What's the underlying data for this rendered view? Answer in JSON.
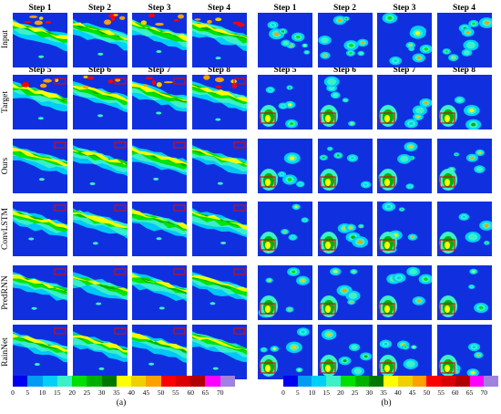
{
  "panels": [
    {
      "caption": "(a)",
      "input_steps": [
        "Step 1",
        "Step 2",
        "Step 3",
        "Step 4"
      ],
      "output_steps": [
        "Step 5",
        "Step 6",
        "Step 7",
        "Step 8"
      ],
      "rows": [
        "Input",
        "Target",
        "Ours",
        "ConvLSTM",
        "PredRNN",
        "RainNet"
      ]
    },
    {
      "caption": "(b)",
      "input_steps": [
        "Step 1",
        "Step 2",
        "Step 3",
        "Step 4"
      ],
      "output_steps": [
        "Step 5",
        "Step 6",
        "Step 7",
        "Step 8"
      ],
      "rows": [
        "Input",
        "Target",
        "Ours",
        "ConvLSTM",
        "PredRNN",
        "RainNet"
      ]
    }
  ],
  "colorbar": {
    "ticks": [
      "0",
      "5",
      "10",
      "15",
      "20",
      "25",
      "30",
      "35",
      "40",
      "45",
      "50",
      "55",
      "60",
      "65",
      "70"
    ],
    "colors": [
      "#0000f0",
      "#009cf4",
      "#00d0f8",
      "#3cf0c8",
      "#00e000",
      "#00b000",
      "#007800",
      "#ffff00",
      "#f0d000",
      "#ffa000",
      "#ff0000",
      "#d80000",
      "#b00000",
      "#ff00ff",
      "#a080e0"
    ]
  },
  "colors": {
    "background_rain": "#1030e0",
    "highlight_box": "#d01010"
  }
}
